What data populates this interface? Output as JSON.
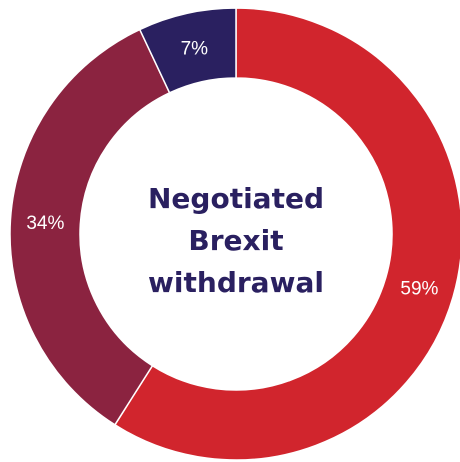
{
  "chart_data": {
    "type": "pie",
    "style": "donut",
    "center_text": [
      "Negotiated",
      "Brexit",
      "withdrawal"
    ],
    "slices": [
      {
        "value": 59,
        "label": "59%",
        "color": "#d1252d"
      },
      {
        "value": 34,
        "label": "34%",
        "color": "#8b2340"
      },
      {
        "value": 7,
        "label": "7%",
        "color": "#2a2060"
      }
    ],
    "start_angle_deg": 0,
    "direction": "clockwise",
    "legend": "none"
  }
}
